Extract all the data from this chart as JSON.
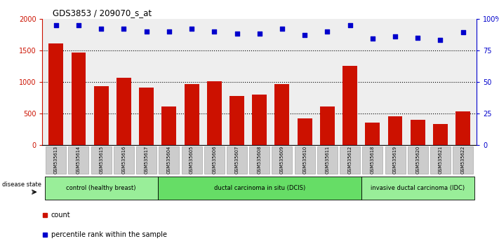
{
  "title": "GDS3853 / 209070_s_at",
  "samples": [
    "GSM535613",
    "GSM535614",
    "GSM535615",
    "GSM535616",
    "GSM535617",
    "GSM535604",
    "GSM535605",
    "GSM535606",
    "GSM535607",
    "GSM535608",
    "GSM535609",
    "GSM535610",
    "GSM535611",
    "GSM535612",
    "GSM535618",
    "GSM535619",
    "GSM535620",
    "GSM535621",
    "GSM535622"
  ],
  "counts": [
    1610,
    1460,
    930,
    1060,
    910,
    605,
    960,
    1010,
    780,
    800,
    970,
    420,
    605,
    1255,
    350,
    460,
    400,
    330,
    530
  ],
  "percentiles": [
    95,
    95,
    92,
    92,
    90,
    90,
    92,
    90,
    88,
    88,
    92,
    87,
    90,
    95,
    84,
    86,
    85,
    83,
    89
  ],
  "bar_color": "#CC1100",
  "dot_color": "#0000CC",
  "ylim_left": [
    0,
    2000
  ],
  "ylim_right": [
    0,
    100
  ],
  "yticks_left": [
    0,
    500,
    1000,
    1500,
    2000
  ],
  "yticks_right": [
    0,
    25,
    50,
    75,
    100
  ],
  "ytick_labels_right": [
    "0",
    "25",
    "50",
    "75",
    "100%"
  ],
  "groups": [
    {
      "label": "control (healthy breast)",
      "start": 0,
      "end": 5,
      "color": "#99EE99"
    },
    {
      "label": "ductal carcinoma in situ (DCIS)",
      "start": 5,
      "end": 14,
      "color": "#66DD66"
    },
    {
      "label": "invasive ductal carcinoma (IDC)",
      "start": 14,
      "end": 19,
      "color": "#99EE99"
    }
  ],
  "legend_count_label": "count",
  "legend_percentile_label": "percentile rank within the sample",
  "disease_state_label": "disease state",
  "plot_bg_color": "#EEEEEE",
  "tick_bg_color": "#CCCCCC"
}
